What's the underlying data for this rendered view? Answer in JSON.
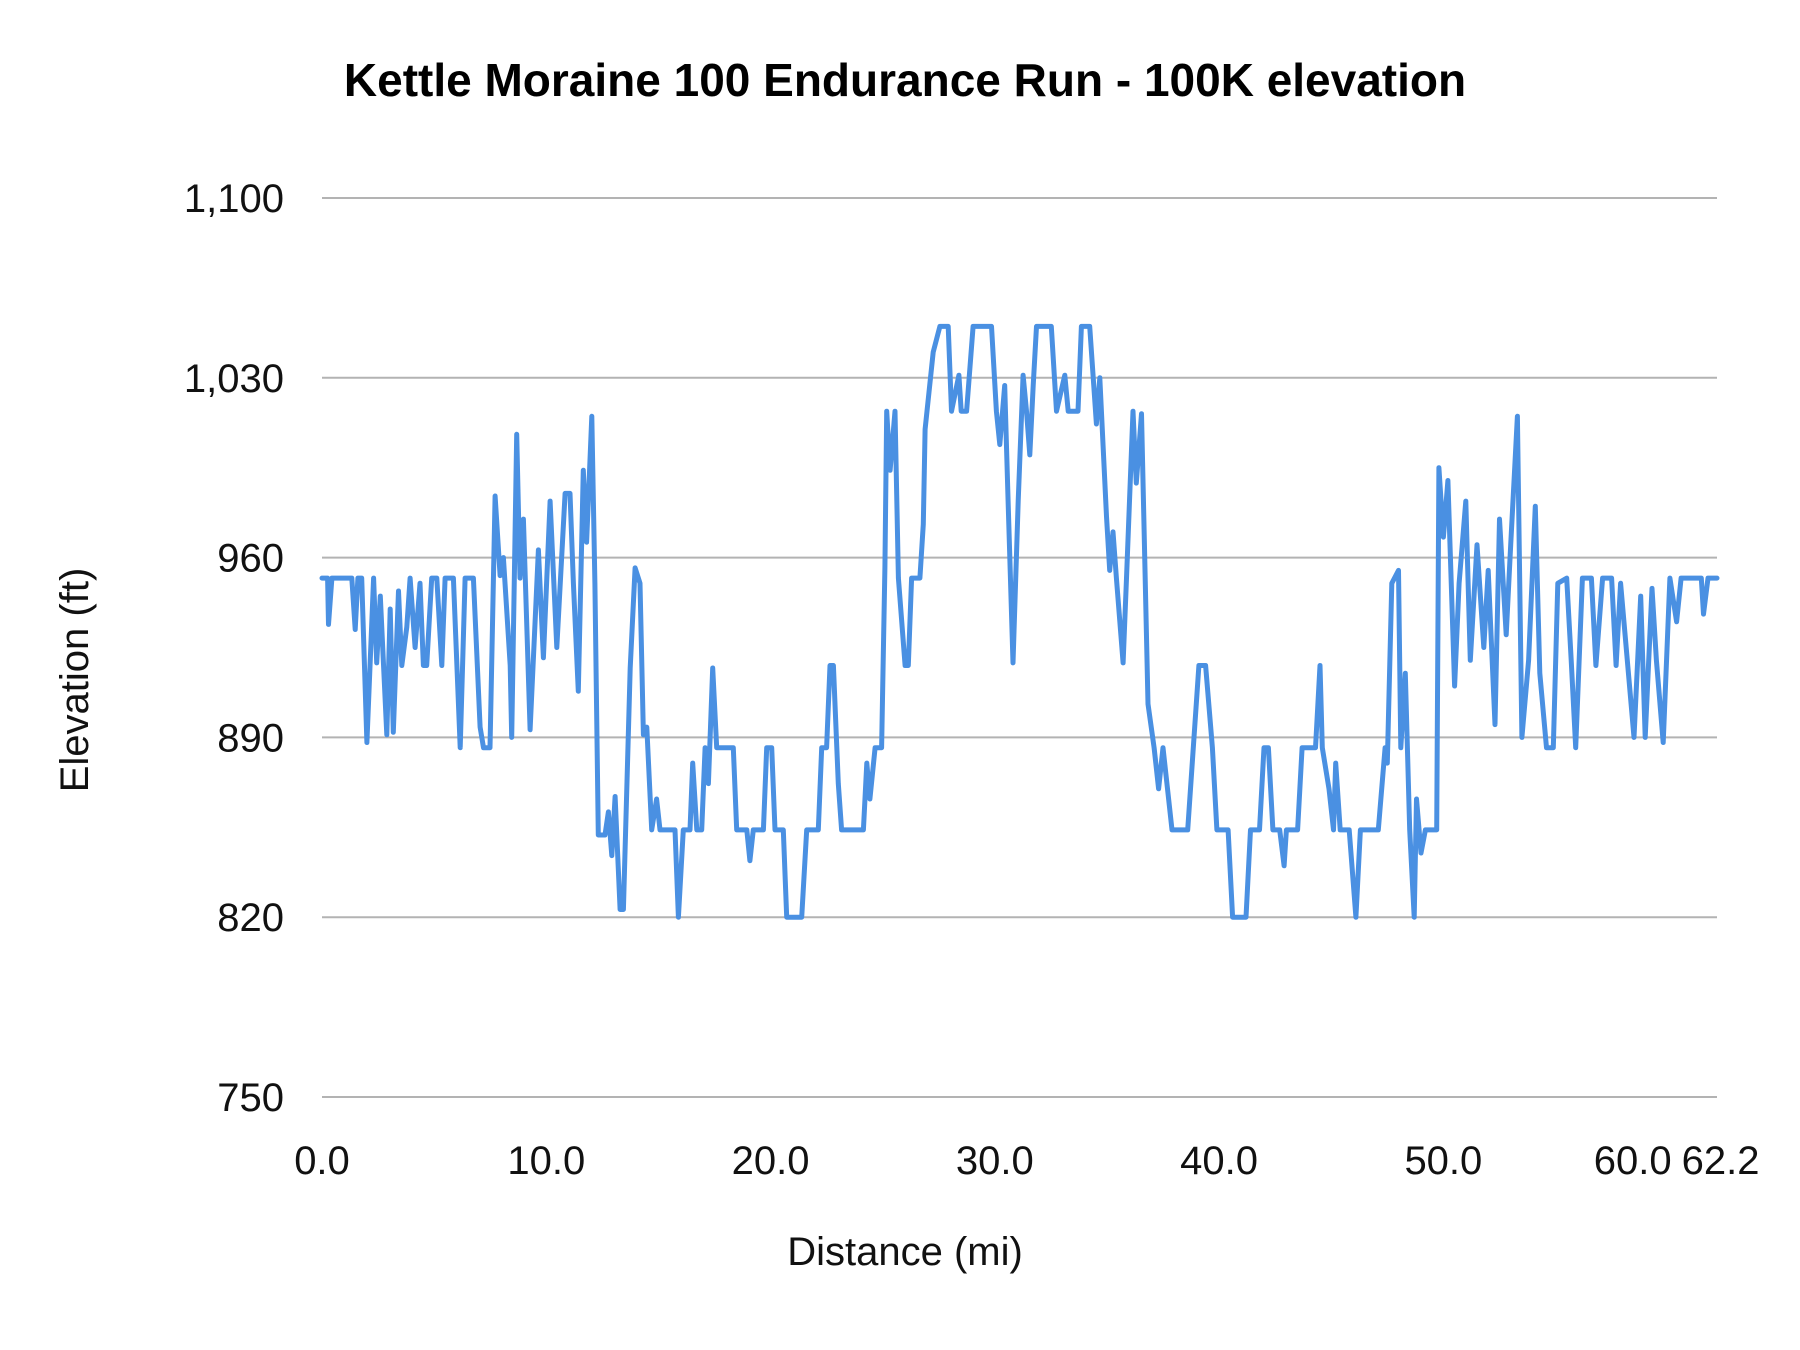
{
  "chart_data": {
    "type": "line",
    "title": "Kettle Moraine 100 Endurance Run - 100K elevation",
    "xlabel": "Distance (mi)",
    "ylabel": "Elevation (ft)",
    "xlim": [
      0,
      62.2
    ],
    "ylim": [
      750,
      1100
    ],
    "x_ticks": [
      0,
      10,
      20,
      30,
      40,
      50,
      60,
      62.2
    ],
    "x_tick_labels": [
      "0.0",
      "10.0",
      "20.0",
      "30.0",
      "40.0",
      "50.0",
      "60.0",
      "62.2"
    ],
    "y_ticks": [
      750,
      820,
      890,
      960,
      1030,
      1100
    ],
    "y_tick_labels": [
      "750",
      "820",
      "890",
      "960",
      "1,030",
      "1,100"
    ],
    "grid": "horizontal",
    "legend": "none",
    "colors": {
      "series": "#4a90e2",
      "grid": "#b3b3b3"
    },
    "series": [
      {
        "x": [
          0,
          0.25,
          0.29,
          0.44,
          1.33,
          1.48,
          1.6,
          1.77,
          2.0,
          2.3,
          2.44,
          2.6,
          2.89,
          3.04,
          3.18,
          3.41,
          3.56,
          3.78,
          3.93,
          4.15,
          4.37,
          4.52,
          4.67,
          4.89,
          5.12,
          5.34,
          5.49,
          5.86,
          6.16,
          6.38,
          6.75,
          7.05,
          7.2,
          7.49,
          7.72,
          7.94,
          8.09,
          8.39,
          8.46,
          8.68,
          8.83,
          8.98,
          9.28,
          9.65,
          9.87,
          10.17,
          10.47,
          10.84,
          11.06,
          11.21,
          11.43,
          11.65,
          11.8,
          12.03,
          12.17,
          12.32,
          12.62,
          12.77,
          12.92,
          13.07,
          13.29,
          13.44,
          13.74,
          13.96,
          14.18,
          14.33,
          14.48,
          14.7,
          14.92,
          15.07,
          15.74,
          15.89,
          16.11,
          16.41,
          16.53,
          16.71,
          16.93,
          17.08,
          17.23,
          17.42,
          17.6,
          18.34,
          18.49,
          18.94,
          19.08,
          19.23,
          19.68,
          19.83,
          20.05,
          20.2,
          20.57,
          20.72,
          21.39,
          21.61,
          22.13,
          22.28,
          22.5,
          22.65,
          22.8,
          23.02,
          23.17,
          24.14,
          24.29,
          24.43,
          24.66,
          24.95,
          25.1,
          25.18,
          25.33,
          25.55,
          25.7,
          26.0,
          26.14,
          26.29,
          26.66,
          26.81,
          26.89,
          27.25,
          27.55,
          27.92,
          28.07,
          28.4,
          28.5,
          28.74,
          29.03,
          29.85,
          30.07,
          30.22,
          30.44,
          30.59,
          30.81,
          31.04,
          31.26,
          31.41,
          31.56,
          31.71,
          31.86,
          32.52,
          32.75,
          33.12,
          33.27,
          33.71,
          33.86,
          34.23,
          34.53,
          34.68,
          34.98,
          35.12,
          35.27,
          35.42,
          35.72,
          35.87,
          36.16,
          36.31,
          36.54,
          36.83,
          37.1,
          37.3,
          37.5,
          37.9,
          38.6,
          39.1,
          39.4,
          39.7,
          39.9,
          40.4,
          40.6,
          41.2,
          41.4,
          41.8,
          42.0,
          42.2,
          42.4,
          42.7,
          42.9,
          43.0,
          43.5,
          43.7,
          44.3,
          44.5,
          44.6,
          44.9,
          45.1,
          45.2,
          45.4,
          45.8,
          46.1,
          46.3,
          47.1,
          47.4,
          47.5,
          47.7,
          48.0,
          48.1,
          48.3,
          48.5,
          48.7,
          48.8,
          49.0,
          49.2,
          49.7,
          49.8,
          50.0,
          50.2,
          50.5,
          50.7,
          51.0,
          51.2,
          51.5,
          51.8,
          52.0,
          52.3,
          52.5,
          52.8,
          53.0,
          53.3,
          53.5,
          53.8,
          54.1,
          54.3,
          54.6,
          54.9,
          55.1,
          55.5,
          55.7,
          55.9,
          56.2,
          56.6,
          56.8,
          57.1,
          57.5,
          57.7,
          57.9,
          58.2,
          58.5,
          58.8,
          59.0,
          59.3,
          59.5,
          59.8,
          60.1,
          60.4,
          60.6,
          61.5,
          61.6,
          61.8,
          62.2
        ],
        "y": [
          952,
          952,
          934,
          952,
          952,
          932,
          952,
          952,
          888,
          952,
          919,
          945,
          891,
          940,
          892,
          947,
          918,
          933,
          952,
          925,
          950,
          918,
          918,
          952,
          952,
          918,
          952,
          952,
          886,
          952,
          952,
          894,
          886,
          886,
          984,
          953,
          960,
          918,
          890,
          1008,
          952,
          975,
          893,
          963,
          921,
          982,
          925,
          985,
          985,
          950,
          908,
          994,
          966,
          1015,
          950,
          852,
          852,
          861,
          844,
          867,
          823,
          823,
          917,
          956,
          950,
          891,
          894,
          854,
          866,
          854,
          854,
          820,
          854,
          854,
          880,
          854,
          854,
          886,
          872,
          917,
          886,
          886,
          854,
          854,
          842,
          854,
          854,
          886,
          886,
          854,
          854,
          820,
          820,
          854,
          854,
          886,
          886,
          918,
          918,
          872,
          854,
          854,
          880,
          866,
          886,
          886,
          956,
          1017,
          994,
          1017,
          952,
          918,
          918,
          952,
          952,
          973,
          1010,
          1040,
          1050,
          1050,
          1017,
          1031,
          1017,
          1017,
          1050,
          1050,
          1017,
          1004,
          1027,
          982,
          919,
          982,
          1031,
          1017,
          1000,
          1027,
          1050,
          1050,
          1017,
          1031,
          1017,
          1017,
          1050,
          1050,
          1012,
          1030,
          976,
          955,
          970,
          952,
          919,
          952,
          1017,
          989,
          1016,
          903,
          886,
          870,
          886,
          854,
          854,
          918,
          918,
          886,
          854,
          854,
          820,
          820,
          854,
          854,
          886,
          886,
          854,
          854,
          840,
          854,
          854,
          886,
          886,
          918,
          886,
          870,
          854,
          880,
          854,
          854,
          820,
          854,
          854,
          886,
          880,
          950,
          955,
          886,
          915,
          854,
          820,
          866,
          845,
          854,
          854,
          995,
          968,
          990,
          910,
          950,
          982,
          920,
          965,
          925,
          955,
          895,
          975,
          930,
          965,
          1015,
          890,
          920,
          980,
          915,
          886,
          886,
          950,
          952,
          920,
          886,
          952,
          952,
          918,
          952,
          952,
          918,
          950,
          920,
          890,
          945,
          890,
          948,
          920,
          888,
          952,
          935,
          952,
          952,
          938,
          952,
          952
        ]
      }
    ]
  }
}
